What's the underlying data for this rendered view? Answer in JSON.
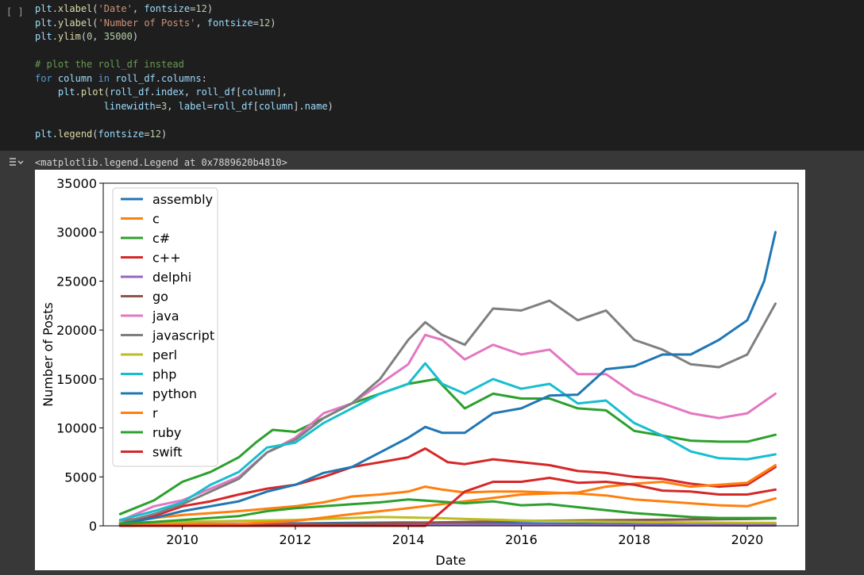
{
  "cell": {
    "bracket": "[ ]",
    "code_lines": [
      "plt.xlabel('Date', fontsize=12)",
      "plt.ylabel('Number of Posts', fontsize=12)",
      "plt.ylim(0, 35000)",
      "",
      "# plot the roll_df instead",
      "for column in roll_df.columns:",
      "    plt.plot(roll_df.index, roll_df[column],",
      "            linewidth=3, label=roll_df[column].name)",
      "",
      "plt.legend(fontsize=12)"
    ],
    "output_text": "<matplotlib.legend.Legend at 0x7889620b4810>"
  },
  "chart_data": {
    "type": "line",
    "title": "",
    "xlabel": "Date",
    "ylabel": "Number of Posts",
    "xlim": [
      2008.6,
      2020.9
    ],
    "ylim": [
      0,
      35000
    ],
    "xticks": [
      2010,
      2012,
      2014,
      2016,
      2018,
      2020
    ],
    "yticks": [
      0,
      5000,
      10000,
      15000,
      20000,
      25000,
      30000,
      35000
    ],
    "legend_position": "top-left",
    "grid": false,
    "series": [
      {
        "name": "assembly",
        "color": "#1f77b4",
        "x": [
          2008.9,
          2010,
          2011,
          2012,
          2013,
          2014,
          2015,
          2016,
          2017,
          2018,
          2019,
          2020,
          2020.5
        ],
        "y": [
          100,
          150,
          200,
          250,
          300,
          350,
          300,
          250,
          200,
          150,
          100,
          100,
          100
        ]
      },
      {
        "name": "c",
        "color": "#ff7f0e",
        "x": [
          2008.9,
          2009.5,
          2010,
          2011,
          2012,
          2012.5,
          2013,
          2013.5,
          2014,
          2014.3,
          2014.6,
          2015,
          2015.5,
          2016,
          2016.5,
          2017,
          2017.5,
          2018,
          2018.5,
          2019,
          2019.5,
          2020,
          2020.5
        ],
        "y": [
          600,
          800,
          1100,
          1500,
          2000,
          2400,
          3000,
          3200,
          3500,
          4000,
          3700,
          3400,
          3500,
          3500,
          3400,
          3300,
          3100,
          2700,
          2500,
          2300,
          2100,
          2000,
          2800
        ]
      },
      {
        "name": "c#",
        "color": "#2ca02c",
        "x": [
          2008.9,
          2009.5,
          2010,
          2010.5,
          2011,
          2011.3,
          2011.6,
          2012,
          2012.5,
          2013,
          2013.5,
          2014,
          2014.5,
          2015,
          2015.5,
          2016,
          2016.5,
          2017,
          2017.5,
          2018,
          2018.5,
          2019,
          2019.5,
          2020,
          2020.5
        ],
        "y": [
          1200,
          2600,
          4500,
          5500,
          7000,
          8500,
          9800,
          9600,
          11000,
          12500,
          13500,
          14500,
          15000,
          12000,
          13500,
          13000,
          13000,
          12000,
          11800,
          9700,
          9200,
          8700,
          8600,
          8600,
          9300
        ]
      },
      {
        "name": "c++",
        "color": "#d62728",
        "x": [
          2008.9,
          2009.5,
          2010,
          2010.5,
          2011,
          2011.5,
          2012,
          2012.5,
          2013,
          2013.5,
          2014,
          2014.3,
          2014.7,
          2015,
          2015.5,
          2016,
          2016.5,
          2017,
          2017.5,
          2018,
          2018.5,
          2019,
          2019.5,
          2020,
          2020.5
        ],
        "y": [
          400,
          1000,
          2000,
          2500,
          3200,
          3800,
          4200,
          5000,
          6000,
          6500,
          7000,
          7900,
          6500,
          6300,
          6800,
          6500,
          6200,
          5600,
          5400,
          5000,
          4800,
          4300,
          4000,
          4200,
          6000
        ]
      },
      {
        "name": "delphi",
        "color": "#9467bd",
        "x": [
          2008.9,
          2010,
          2011,
          2012,
          2013,
          2014,
          2015,
          2016,
          2017,
          2018,
          2019,
          2020,
          2020.5
        ],
        "y": [
          150,
          200,
          220,
          200,
          180,
          150,
          120,
          100,
          80,
          60,
          50,
          40,
          40
        ]
      },
      {
        "name": "go",
        "color": "#8c564b",
        "x": [
          2008.9,
          2009.9,
          2010,
          2011,
          2012,
          2013,
          2014,
          2015,
          2016,
          2017,
          2018,
          2019,
          2020,
          2020.5
        ],
        "y": [
          0,
          0,
          50,
          100,
          150,
          200,
          300,
          400,
          500,
          550,
          600,
          650,
          700,
          750
        ]
      },
      {
        "name": "java",
        "color": "#e377c2",
        "x": [
          2008.9,
          2009.5,
          2010,
          2010.5,
          2011,
          2011.5,
          2012,
          2012.5,
          2013,
          2013.5,
          2014,
          2014.3,
          2014.6,
          2015,
          2015.5,
          2016,
          2016.5,
          2017,
          2017.5,
          2018,
          2018.5,
          2019,
          2019.5,
          2020,
          2020.5
        ],
        "y": [
          500,
          2000,
          2600,
          3800,
          5000,
          7500,
          9000,
          11500,
          12500,
          14500,
          16500,
          19500,
          19000,
          17000,
          18500,
          17500,
          18000,
          15500,
          15500,
          13500,
          12500,
          11500,
          11000,
          11500,
          13500
        ]
      },
      {
        "name": "javascript",
        "color": "#7f7f7f",
        "x": [
          2008.9,
          2009.5,
          2010,
          2010.5,
          2011,
          2011.5,
          2012,
          2012.5,
          2013,
          2013.5,
          2014,
          2014.3,
          2014.6,
          2015,
          2015.5,
          2016,
          2016.5,
          2017,
          2017.5,
          2018,
          2018.5,
          2019,
          2019.5,
          2020,
          2020.5
        ],
        "y": [
          300,
          1200,
          2200,
          3500,
          4800,
          7500,
          8800,
          11000,
          12500,
          15000,
          19000,
          20800,
          19500,
          18500,
          22200,
          22000,
          23000,
          21000,
          22000,
          19000,
          18000,
          16500,
          16200,
          17500,
          22700
        ]
      },
      {
        "name": "perl",
        "color": "#bcbd22",
        "x": [
          2008.9,
          2010,
          2011,
          2012,
          2013,
          2013.5,
          2014,
          2014.5,
          2015,
          2016,
          2017,
          2018,
          2019,
          2020,
          2020.5
        ],
        "y": [
          300,
          400,
          500,
          600,
          800,
          900,
          850,
          800,
          700,
          550,
          450,
          400,
          350,
          300,
          300
        ]
      },
      {
        "name": "php",
        "color": "#17becf",
        "x": [
          2008.9,
          2009.5,
          2010,
          2010.5,
          2011,
          2011.5,
          2012,
          2012.5,
          2013,
          2013.5,
          2014,
          2014.3,
          2014.6,
          2015,
          2015.5,
          2016,
          2016.5,
          2017,
          2017.5,
          2018,
          2018.5,
          2019,
          2019.5,
          2020,
          2020.5
        ],
        "y": [
          600,
          1500,
          2400,
          4200,
          5500,
          8000,
          8500,
          10500,
          12000,
          13500,
          14500,
          16600,
          14500,
          13500,
          15000,
          14000,
          14500,
          12500,
          12800,
          10500,
          9200,
          7600,
          6900,
          6800,
          7300
        ]
      },
      {
        "name": "python",
        "color": "#1f77b4",
        "x": [
          2008.9,
          2009.5,
          2010,
          2010.5,
          2011,
          2011.5,
          2012,
          2012.5,
          2013,
          2013.5,
          2014,
          2014.3,
          2014.6,
          2015,
          2015.5,
          2016,
          2016.5,
          2017,
          2017.5,
          2018,
          2018.5,
          2019,
          2019.5,
          2020,
          2020.3,
          2020.5
        ],
        "y": [
          200,
          800,
          1500,
          2000,
          2500,
          3500,
          4200,
          5400,
          6000,
          7500,
          9000,
          10100,
          9500,
          9500,
          11500,
          12000,
          13300,
          13400,
          16000,
          16300,
          17500,
          17500,
          19000,
          21000,
          25000,
          30000
        ]
      },
      {
        "name": "r",
        "color": "#ff7f0e",
        "x": [
          2008.9,
          2010,
          2011,
          2012,
          2013,
          2014,
          2015,
          2016,
          2017,
          2017.5,
          2018,
          2018.5,
          2019,
          2019.5,
          2020,
          2020.5
        ],
        "y": [
          100,
          150,
          200,
          500,
          1200,
          1800,
          2500,
          3200,
          3400,
          4000,
          4300,
          4500,
          4000,
          4200,
          4400,
          6200
        ]
      },
      {
        "name": "ruby",
        "color": "#2ca02c",
        "x": [
          2008.9,
          2009.5,
          2010,
          2011,
          2011.5,
          2012,
          2012.5,
          2013,
          2013.5,
          2014,
          2014.5,
          2015,
          2015.5,
          2016,
          2016.5,
          2017,
          2017.5,
          2018,
          2018.5,
          2019,
          2019.5,
          2020,
          2020.5
        ],
        "y": [
          200,
          400,
          600,
          1000,
          1500,
          1800,
          2000,
          2200,
          2400,
          2700,
          2500,
          2300,
          2500,
          2100,
          2200,
          1900,
          1600,
          1300,
          1100,
          900,
          800,
          800,
          800
        ]
      },
      {
        "name": "swift",
        "color": "#d62728",
        "x": [
          2008.9,
          2014.3,
          2014.6,
          2015,
          2015.5,
          2016,
          2016.5,
          2017,
          2017.5,
          2018,
          2018.5,
          2019,
          2019.5,
          2020,
          2020.5
        ],
        "y": [
          0,
          0,
          1500,
          3500,
          4500,
          4500,
          4900,
          4400,
          4500,
          4200,
          3600,
          3500,
          3200,
          3200,
          3700
        ]
      }
    ]
  }
}
